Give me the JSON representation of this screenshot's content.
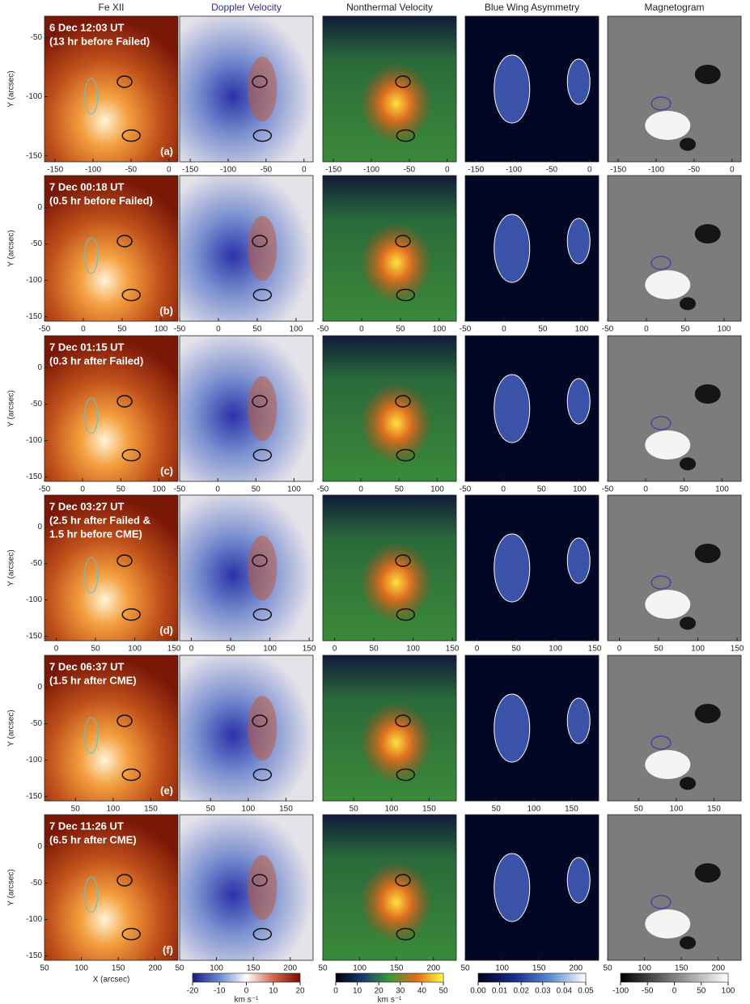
{
  "columns": [
    {
      "title": "Fe XII",
      "color": "#222222"
    },
    {
      "title": "Doppler Velocity",
      "color": "#2a2a8a"
    },
    {
      "title": "Nonthermal Velocity",
      "color": "#222222"
    },
    {
      "title": "Blue Wing Asymmetry",
      "color": "#222222"
    },
    {
      "title": "Magnetogram",
      "color": "#222222"
    }
  ],
  "ylabel": "Y (arcsec)",
  "xlabel": "X (arcsec)",
  "rows": [
    {
      "label": [
        "6 Dec 12:03 UT",
        "(13 hr before Failed)"
      ],
      "panel": "(a)",
      "xlim": [
        -164,
        12
      ],
      "xticks": [
        -150,
        -100,
        -50,
        0
      ],
      "ylim": [
        -155,
        -32
      ],
      "yticks": [
        -50,
        -100,
        -150
      ]
    },
    {
      "label": [
        "7 Dec 00:18 UT",
        "(0.5 hr before Failed)"
      ],
      "panel": "(b)",
      "xlim": [
        -50,
        122
      ],
      "xticks": [
        -50,
        0,
        50,
        100
      ],
      "ylim": [
        -156,
        44
      ],
      "yticks": [
        0,
        -50,
        -100,
        -150
      ]
    },
    {
      "label": [
        "7 Dec 01:15 UT",
        "(0.3 hr after Failed)"
      ],
      "panel": "(c)",
      "xlim": [
        -50,
        125
      ],
      "xticks": [
        -50,
        0,
        50,
        100
      ],
      "ylim": [
        -156,
        44
      ],
      "yticks": [
        0,
        -50,
        -100,
        -150
      ]
    },
    {
      "label": [
        "7 Dec 03:27 UT",
        "(2.5 hr after Failed &",
        "1.5 hr before CME)"
      ],
      "panel": "(d)",
      "xlim": [
        -15,
        155
      ],
      "xticks": [
        0,
        50,
        100,
        150
      ],
      "ylim": [
        -156,
        44
      ],
      "yticks": [
        0,
        -50,
        -100,
        -150
      ]
    },
    {
      "label": [
        "7 Dec 06:37 UT",
        "(1.5 hr after CME)"
      ],
      "panel": "(e)",
      "xlim": [
        9,
        186
      ],
      "xticks": [
        50,
        100,
        150
      ],
      "ylim": [
        -156,
        44
      ],
      "yticks": [
        0,
        -50,
        -100,
        -150
      ]
    },
    {
      "label": [
        "7 Dec 11:26 UT",
        "(6.5 hr after CME)"
      ],
      "panel": "(f)",
      "xlim": [
        50,
        231
      ],
      "xticks": [
        50,
        100,
        150,
        200
      ],
      "ylim": [
        -156,
        44
      ],
      "yticks": [
        0,
        -50,
        -100,
        -150
      ]
    }
  ],
  "colorbars": [
    {
      "lim": [
        -20,
        20
      ],
      "ticks": [
        -20,
        -10,
        0,
        10,
        20
      ],
      "label": "km s⁻¹",
      "colors": [
        "#1a1a8a",
        "#6a8ad0",
        "#ffffff",
        "#d06a4a",
        "#7a0a0a"
      ]
    },
    {
      "lim": [
        0,
        50
      ],
      "ticks": [
        0,
        10,
        20,
        30,
        40,
        50
      ],
      "label": "km s⁻¹",
      "colors": [
        "#000010",
        "#1a3a6a",
        "#3a9a3a",
        "#e06a1a",
        "#ffff40"
      ]
    },
    {
      "lim": [
        0,
        0.05
      ],
      "ticks": [
        {
          "value": 0,
          "label": "0.00"
        },
        {
          "value": 0.01,
          "label": "0.01"
        },
        {
          "value": 0.02,
          "label": "0.02"
        },
        {
          "value": 0.03,
          "label": "0.03"
        },
        {
          "value": 0.04,
          "label": "0.04"
        },
        {
          "value": 0.05,
          "label": "0.05"
        }
      ],
      "colors": [
        "#000020",
        "#1a2a8a",
        "#5a8ad0",
        "#ffffff"
      ]
    },
    {
      "lim": [
        -100,
        100
      ],
      "ticks": [
        -100,
        -50,
        0,
        50,
        100
      ],
      "colors": [
        "#000000",
        "#ffffff"
      ]
    }
  ]
}
